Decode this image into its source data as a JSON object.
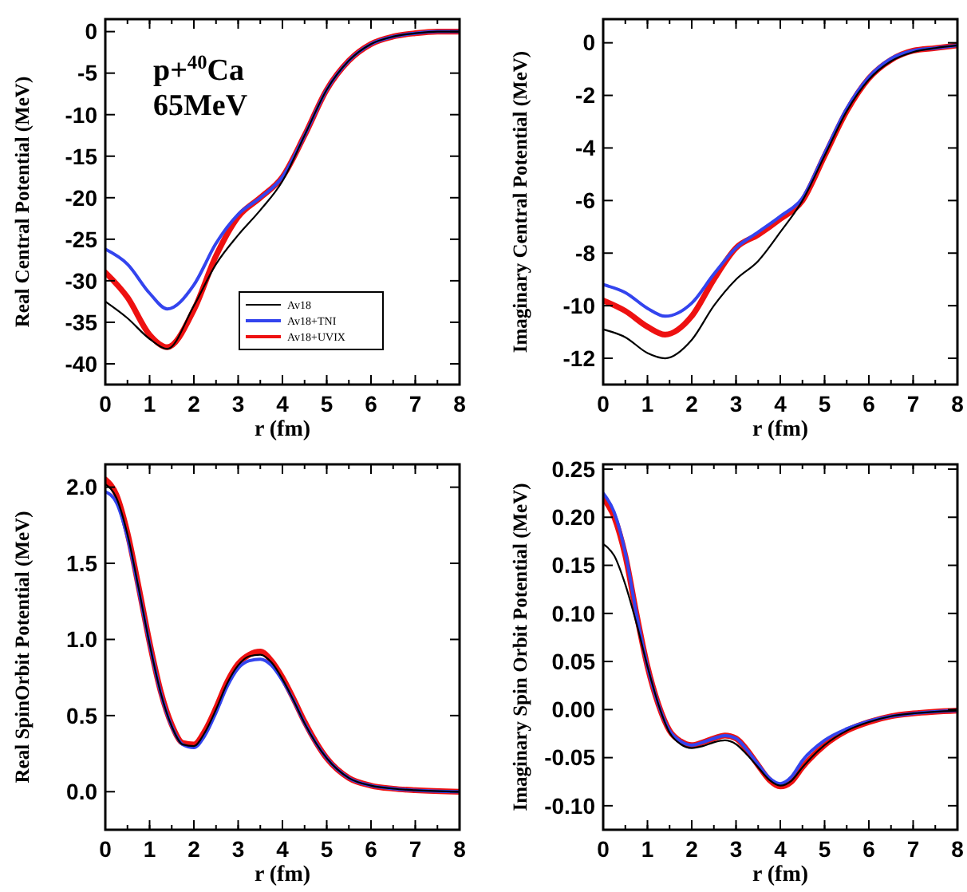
{
  "chart_data": [
    {
      "type": "line",
      "xlabel": "r (fm)",
      "ylabel": "Real Central Potential (MeV)",
      "annotations": [
        "p+$^{40}$Ca",
        "65MeV"
      ],
      "legend": "bottom right",
      "marker": "none",
      "line_style": "solid",
      "xlim": [
        0,
        8
      ],
      "xticks": [
        0,
        1,
        2,
        3,
        4,
        5,
        6,
        7,
        8
      ],
      "ylim": [
        -42.5,
        1.5
      ],
      "yticks": [
        -40,
        -35,
        -30,
        -25,
        -20,
        -15,
        -10,
        -5,
        0
      ],
      "x": [
        0,
        0.5,
        1,
        1.4,
        2,
        2.5,
        3,
        3.5,
        4,
        4.5,
        5,
        5.5,
        6,
        6.5,
        7,
        7.5,
        8
      ],
      "series": [
        {
          "name": "Av18",
          "color": "#000000",
          "values": [
            -32.5,
            -34.5,
            -37,
            -38.2,
            -33,
            -28,
            -24.5,
            -21.5,
            -18,
            -12.5,
            -7,
            -3.5,
            -1.5,
            -0.6,
            -0.2,
            0,
            0
          ]
        },
        {
          "name": "Av18+TNI",
          "color": "#3344ee",
          "values": [
            -26.2,
            -28,
            -31.5,
            -33.4,
            -30.5,
            -25.5,
            -22,
            -20,
            -17.5,
            -12.5,
            -7,
            -3.5,
            -1.5,
            -0.6,
            -0.2,
            0,
            0
          ]
        },
        {
          "name": "Av18+UVIX",
          "color": "#ee1111",
          "values": [
            -29,
            -32,
            -36.5,
            -38,
            -33.5,
            -27,
            -22.3,
            -20,
            -17.5,
            -12.5,
            -7,
            -3.5,
            -1.5,
            -0.6,
            -0.2,
            0,
            0
          ]
        }
      ]
    },
    {
      "type": "line",
      "xlabel": "r (fm)",
      "ylabel": "Imaginary Central Potential (MeV)",
      "marker": "none",
      "line_style": "solid",
      "xlim": [
        0,
        8
      ],
      "xticks": [
        0,
        1,
        2,
        3,
        4,
        5,
        6,
        7,
        8
      ],
      "ylim": [
        -13,
        0.9
      ],
      "yticks": [
        -12,
        -10,
        -8,
        -6,
        -4,
        -2,
        0
      ],
      "x": [
        0,
        0.5,
        1,
        1.4,
        2,
        2.5,
        3,
        3.5,
        4,
        4.5,
        5,
        5.5,
        6,
        6.5,
        7,
        7.5,
        8
      ],
      "series": [
        {
          "color": "#000000",
          "values": [
            -10.9,
            -11.2,
            -11.8,
            -12,
            -11.3,
            -10,
            -9,
            -8.3,
            -7.2,
            -6,
            -4.3,
            -2.6,
            -1.4,
            -0.7,
            -0.35,
            -0.2,
            -0.1
          ]
        },
        {
          "color": "#3344ee",
          "values": [
            -9.2,
            -9.5,
            -10.1,
            -10.4,
            -9.9,
            -8.8,
            -7.8,
            -7.2,
            -6.6,
            -5.9,
            -4.2,
            -2.5,
            -1.3,
            -0.6,
            -0.3,
            -0.2,
            -0.1
          ]
        },
        {
          "color": "#ee1111",
          "values": [
            -9.8,
            -10.2,
            -10.8,
            -11.1,
            -10.4,
            -9,
            -7.8,
            -7.3,
            -6.7,
            -6,
            -4.3,
            -2.6,
            -1.35,
            -0.65,
            -0.3,
            -0.2,
            -0.1
          ]
        }
      ]
    },
    {
      "type": "line",
      "xlabel": "r (fm)",
      "ylabel": "Real SpinOrbit Potential (MeV)",
      "marker": "none",
      "line_style": "solid",
      "xlim": [
        0,
        8
      ],
      "xticks": [
        0,
        1,
        2,
        3,
        4,
        5,
        6,
        7,
        8
      ],
      "ylim": [
        -0.25,
        2.15
      ],
      "yticks": [
        {
          "value": 0,
          "label": "0.0"
        },
        0.5,
        {
          "value": 1,
          "label": "1.0"
        },
        1.5,
        {
          "value": 2,
          "label": "2.0"
        }
      ],
      "x": [
        0,
        0.25,
        0.5,
        0.75,
        1,
        1.25,
        1.5,
        1.75,
        2,
        2.25,
        2.5,
        2.75,
        3,
        3.25,
        3.5,
        3.75,
        4,
        4.25,
        4.5,
        5,
        5.5,
        6,
        6.5,
        7,
        8
      ],
      "series": [
        {
          "color": "#000000",
          "values": [
            2.02,
            1.93,
            1.69,
            1.34,
            0.97,
            0.65,
            0.43,
            0.31,
            0.3,
            0.39,
            0.54,
            0.71,
            0.83,
            0.89,
            0.9,
            0.85,
            0.74,
            0.6,
            0.45,
            0.22,
            0.09,
            0.04,
            0.02,
            0.01,
            0
          ]
        },
        {
          "color": "#3344ee",
          "values": [
            1.97,
            1.9,
            1.67,
            1.33,
            0.97,
            0.65,
            0.43,
            0.31,
            0.29,
            0.37,
            0.52,
            0.69,
            0.81,
            0.86,
            0.87,
            0.83,
            0.73,
            0.6,
            0.45,
            0.22,
            0.09,
            0.04,
            0.02,
            0.01,
            0
          ]
        },
        {
          "color": "#ee1111",
          "values": [
            2.05,
            1.95,
            1.7,
            1.35,
            0.98,
            0.66,
            0.44,
            0.32,
            0.31,
            0.4,
            0.55,
            0.72,
            0.84,
            0.9,
            0.92,
            0.86,
            0.75,
            0.61,
            0.46,
            0.22,
            0.09,
            0.04,
            0.02,
            0.01,
            0
          ]
        }
      ]
    },
    {
      "type": "line",
      "xlabel": "r (fm)",
      "ylabel": "Imaginary Spin Orbit Potential (MeV)",
      "marker": "none",
      "line_style": "solid",
      "xlim": [
        0,
        8
      ],
      "xticks": [
        0,
        1,
        2,
        3,
        4,
        5,
        6,
        7,
        8
      ],
      "ylim": [
        -0.125,
        0.255
      ],
      "yticks": [
        {
          "value": -0.1,
          "label": "-0.10"
        },
        {
          "value": -0.05,
          "label": "-0.05"
        },
        {
          "value": 0,
          "label": "0.00"
        },
        0.05,
        {
          "value": 0.1,
          "label": "0.10"
        },
        0.15,
        {
          "value": 0.2,
          "label": "0.20"
        },
        0.25
      ],
      "x": [
        0,
        0.25,
        0.5,
        0.75,
        1,
        1.25,
        1.5,
        1.75,
        2,
        2.25,
        2.5,
        2.75,
        3,
        3.25,
        3.5,
        3.75,
        4,
        4.25,
        4.5,
        5,
        5.5,
        6,
        6.5,
        7,
        8
      ],
      "series": [
        {
          "color": "#000000",
          "values": [
            0.172,
            0.16,
            0.13,
            0.09,
            0.045,
            0.005,
            -0.024,
            -0.036,
            -0.04,
            -0.038,
            -0.034,
            -0.032,
            -0.036,
            -0.047,
            -0.06,
            -0.073,
            -0.079,
            -0.074,
            -0.06,
            -0.037,
            -0.022,
            -0.013,
            -0.007,
            -0.004,
            -0.001
          ]
        },
        {
          "color": "#3344ee",
          "values": [
            0.225,
            0.205,
            0.163,
            0.1,
            0.045,
            0.005,
            -0.022,
            -0.033,
            -0.037,
            -0.034,
            -0.03,
            -0.027,
            -0.03,
            -0.042,
            -0.057,
            -0.071,
            -0.077,
            -0.07,
            -0.053,
            -0.032,
            -0.02,
            -0.012,
            -0.007,
            -0.004,
            -0.001
          ]
        },
        {
          "color": "#ee1111",
          "values": [
            0.22,
            0.2,
            0.16,
            0.1,
            0.045,
            0.005,
            -0.022,
            -0.033,
            -0.037,
            -0.034,
            -0.03,
            -0.027,
            -0.03,
            -0.042,
            -0.058,
            -0.073,
            -0.08,
            -0.075,
            -0.06,
            -0.037,
            -0.022,
            -0.013,
            -0.007,
            -0.004,
            -0.001
          ]
        }
      ]
    }
  ]
}
